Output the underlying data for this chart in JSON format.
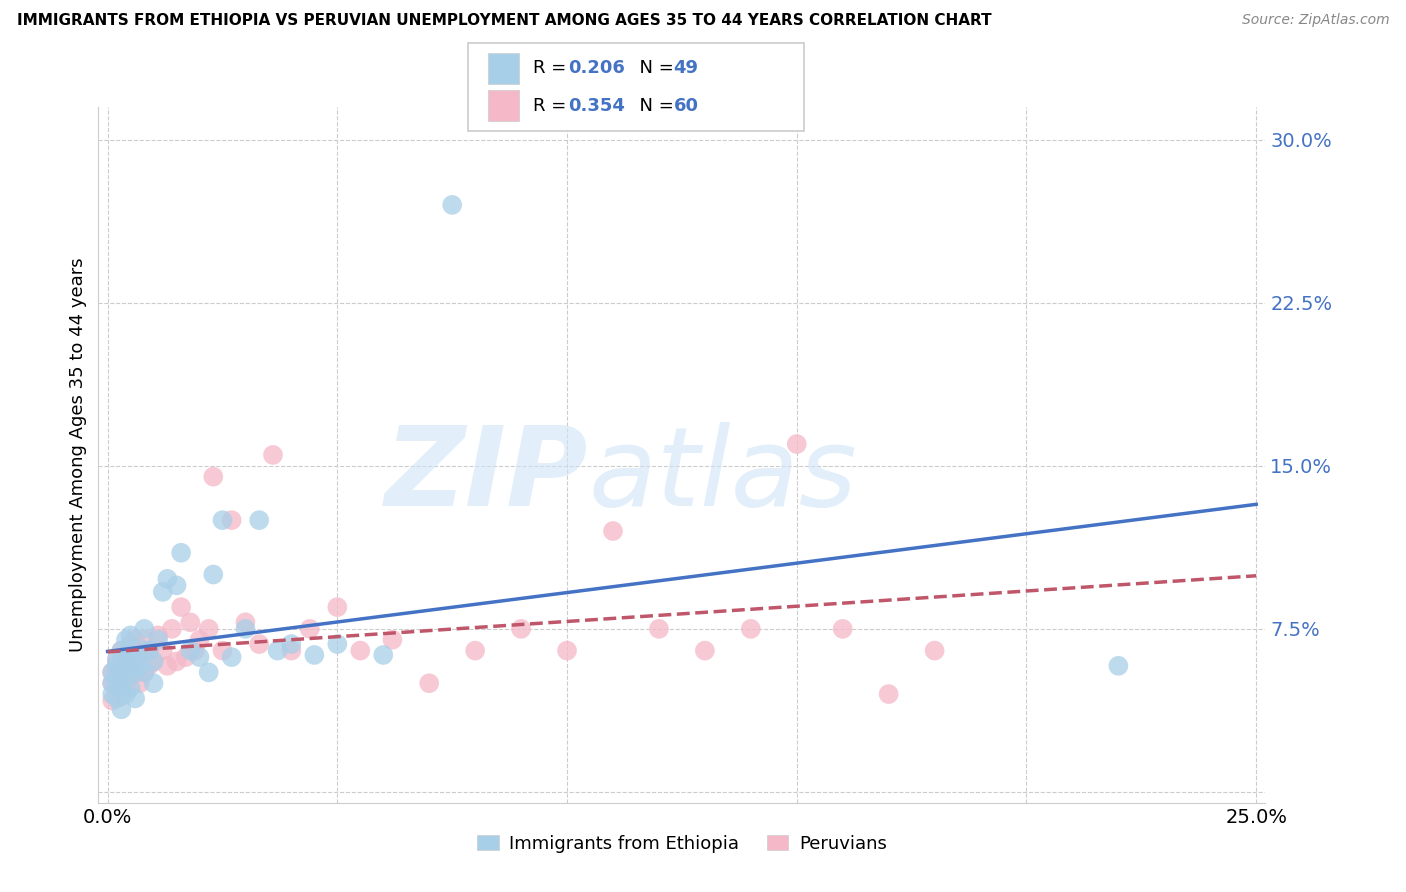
{
  "title": "IMMIGRANTS FROM ETHIOPIA VS PERUVIAN UNEMPLOYMENT AMONG AGES 35 TO 44 YEARS CORRELATION CHART",
  "source": "Source: ZipAtlas.com",
  "ylabel": "Unemployment Among Ages 35 to 44 years",
  "xlim": [
    0.0,
    0.25
  ],
  "ylim": [
    0.0,
    0.32
  ],
  "yticks": [
    0.0,
    0.075,
    0.15,
    0.225,
    0.3
  ],
  "ytick_labels": [
    "",
    "7.5%",
    "15.0%",
    "22.5%",
    "30.0%"
  ],
  "xticks": [
    0.0,
    0.05,
    0.1,
    0.15,
    0.2,
    0.25
  ],
  "xtick_labels": [
    "0.0%",
    "",
    "",
    "",
    "",
    "25.0%"
  ],
  "r_ethiopia": 0.206,
  "n_ethiopia": 49,
  "r_peruvian": 0.354,
  "n_peruvian": 60,
  "ethiopia_color": "#a8cfe8",
  "peruvian_color": "#f4b8c8",
  "ethiopia_line_color": "#4472c4",
  "peruvian_line_color": "#c0566a",
  "ethiopia_line_style": "solid",
  "peruvian_line_style": "dashed",
  "eth_line_intercept": 0.048,
  "eth_line_slope": 0.048,
  "per_line_intercept": 0.048,
  "per_line_slope": 0.06,
  "ethiopia_points_x": [
    0.001,
    0.001,
    0.001,
    0.002,
    0.002,
    0.002,
    0.002,
    0.003,
    0.003,
    0.003,
    0.003,
    0.004,
    0.004,
    0.004,
    0.004,
    0.005,
    0.005,
    0.005,
    0.005,
    0.006,
    0.006,
    0.006,
    0.007,
    0.007,
    0.008,
    0.008,
    0.009,
    0.01,
    0.01,
    0.011,
    0.012,
    0.013,
    0.015,
    0.016,
    0.018,
    0.02,
    0.022,
    0.023,
    0.025,
    0.027,
    0.03,
    0.033,
    0.037,
    0.04,
    0.045,
    0.05,
    0.06,
    0.075,
    0.22
  ],
  "ethiopia_points_y": [
    0.05,
    0.055,
    0.045,
    0.052,
    0.058,
    0.043,
    0.061,
    0.056,
    0.048,
    0.065,
    0.038,
    0.06,
    0.053,
    0.07,
    0.045,
    0.058,
    0.063,
    0.048,
    0.072,
    0.055,
    0.062,
    0.043,
    0.058,
    0.066,
    0.055,
    0.075,
    0.065,
    0.06,
    0.05,
    0.07,
    0.092,
    0.098,
    0.095,
    0.11,
    0.065,
    0.062,
    0.055,
    0.1,
    0.125,
    0.062,
    0.075,
    0.125,
    0.065,
    0.068,
    0.063,
    0.068,
    0.063,
    0.27,
    0.058
  ],
  "peruvian_points_x": [
    0.001,
    0.001,
    0.001,
    0.002,
    0.002,
    0.002,
    0.003,
    0.003,
    0.003,
    0.003,
    0.004,
    0.004,
    0.004,
    0.005,
    0.005,
    0.005,
    0.006,
    0.006,
    0.007,
    0.007,
    0.007,
    0.008,
    0.008,
    0.009,
    0.009,
    0.01,
    0.011,
    0.012,
    0.013,
    0.014,
    0.015,
    0.016,
    0.017,
    0.018,
    0.019,
    0.02,
    0.022,
    0.023,
    0.025,
    0.027,
    0.03,
    0.033,
    0.036,
    0.04,
    0.044,
    0.05,
    0.055,
    0.062,
    0.07,
    0.08,
    0.09,
    0.1,
    0.11,
    0.12,
    0.13,
    0.14,
    0.15,
    0.16,
    0.17,
    0.18
  ],
  "peruvian_points_y": [
    0.05,
    0.055,
    0.042,
    0.06,
    0.048,
    0.055,
    0.052,
    0.058,
    0.044,
    0.065,
    0.055,
    0.048,
    0.063,
    0.06,
    0.053,
    0.068,
    0.055,
    0.07,
    0.058,
    0.05,
    0.063,
    0.055,
    0.07,
    0.058,
    0.065,
    0.06,
    0.072,
    0.065,
    0.058,
    0.075,
    0.06,
    0.085,
    0.062,
    0.078,
    0.065,
    0.07,
    0.075,
    0.145,
    0.065,
    0.125,
    0.078,
    0.068,
    0.155,
    0.065,
    0.075,
    0.085,
    0.065,
    0.07,
    0.05,
    0.065,
    0.075,
    0.065,
    0.12,
    0.075,
    0.065,
    0.075,
    0.16,
    0.075,
    0.045,
    0.065
  ]
}
